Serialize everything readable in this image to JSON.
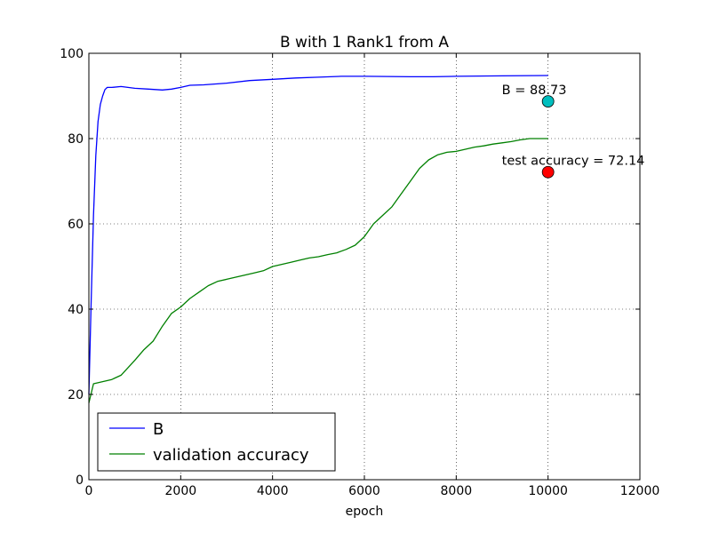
{
  "chart_data": {
    "type": "line",
    "title": "B with 1 Rank1 from A",
    "xlabel": "epoch",
    "ylabel": "",
    "xlim": [
      0,
      12000
    ],
    "ylim": [
      0,
      100
    ],
    "xticks": [
      "0",
      "2000",
      "4000",
      "6000",
      "8000",
      "10000",
      "12000"
    ],
    "yticks": [
      "0",
      "20",
      "40",
      "60",
      "80",
      "100"
    ],
    "grid": true,
    "legend_position": "lower-left",
    "series": [
      {
        "name": "B",
        "color": "#0000ff",
        "points": [
          [
            0,
            20
          ],
          [
            50,
            42
          ],
          [
            100,
            62
          ],
          [
            150,
            76
          ],
          [
            200,
            84
          ],
          [
            250,
            88
          ],
          [
            300,
            90
          ],
          [
            350,
            91.5
          ],
          [
            400,
            92
          ],
          [
            500,
            92
          ],
          [
            700,
            92.2
          ],
          [
            1000,
            91.8
          ],
          [
            1300,
            91.6
          ],
          [
            1600,
            91.4
          ],
          [
            1800,
            91.6
          ],
          [
            2000,
            92
          ],
          [
            2200,
            92.5
          ],
          [
            2500,
            92.6
          ],
          [
            3000,
            93
          ],
          [
            3500,
            93.6
          ],
          [
            4000,
            93.9
          ],
          [
            4500,
            94.2
          ],
          [
            5000,
            94.4
          ],
          [
            5500,
            94.6
          ],
          [
            6000,
            94.6
          ],
          [
            7000,
            94.5
          ],
          [
            7500,
            94.5
          ],
          [
            8000,
            94.6
          ],
          [
            9000,
            94.7
          ],
          [
            10000,
            94.8
          ]
        ]
      },
      {
        "name": "validation accuracy",
        "color": "#008000",
        "points": [
          [
            0,
            18
          ],
          [
            100,
            22.5
          ],
          [
            300,
            23
          ],
          [
            500,
            23.5
          ],
          [
            700,
            24.5
          ],
          [
            1000,
            28
          ],
          [
            1200,
            30.5
          ],
          [
            1400,
            32.5
          ],
          [
            1600,
            36
          ],
          [
            1800,
            39
          ],
          [
            2000,
            40.5
          ],
          [
            2200,
            42.5
          ],
          [
            2400,
            44
          ],
          [
            2600,
            45.5
          ],
          [
            2800,
            46.5
          ],
          [
            3000,
            47
          ],
          [
            3200,
            47.5
          ],
          [
            3400,
            48
          ],
          [
            3600,
            48.5
          ],
          [
            3800,
            49
          ],
          [
            4000,
            50
          ],
          [
            4200,
            50.5
          ],
          [
            4400,
            51
          ],
          [
            4600,
            51.5
          ],
          [
            4800,
            52
          ],
          [
            5000,
            52.3
          ],
          [
            5200,
            52.8
          ],
          [
            5400,
            53.2
          ],
          [
            5600,
            54
          ],
          [
            5800,
            55
          ],
          [
            6000,
            57
          ],
          [
            6200,
            60
          ],
          [
            6400,
            62
          ],
          [
            6600,
            64
          ],
          [
            6800,
            67
          ],
          [
            7000,
            70
          ],
          [
            7200,
            73
          ],
          [
            7400,
            75
          ],
          [
            7600,
            76.2
          ],
          [
            7800,
            76.8
          ],
          [
            8000,
            77
          ],
          [
            8200,
            77.5
          ],
          [
            8400,
            78
          ],
          [
            8600,
            78.3
          ],
          [
            8800,
            78.7
          ],
          [
            9000,
            79
          ],
          [
            9200,
            79.3
          ],
          [
            9400,
            79.7
          ],
          [
            9600,
            80
          ],
          [
            10000,
            80
          ]
        ]
      }
    ],
    "annotations": [
      {
        "text": "B = 88.73",
        "x": 10000,
        "y": 88.73,
        "marker_color": "#00bfbf"
      },
      {
        "text": "test accuracy = 72.14",
        "x": 10000,
        "y": 72.14,
        "marker_color": "#ff0000"
      }
    ]
  }
}
